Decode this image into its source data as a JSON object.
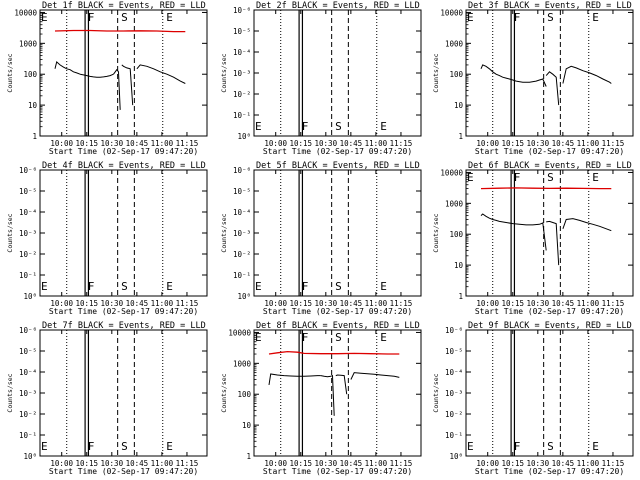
{
  "chart_data": [
    {
      "type": "line",
      "title": "Det 1f BLACK = Events, RED = LLD",
      "xlabel": "Start Time (02-Sep-17 09:47:20)",
      "ylabel": "Counts/sec",
      "y_tick_labels": [
        "1",
        "10",
        "100",
        "1000",
        "10000"
      ],
      "x_tick_labels": [
        "10:00",
        "10:15",
        "10:30",
        "10:45",
        "11:00",
        "11:15"
      ],
      "markers": [
        "E",
        "F",
        "S",
        "E"
      ],
      "xlim": [
        "09:47",
        "11:27"
      ],
      "ylim": [
        1,
        12000
      ],
      "scale_y": "log",
      "events": {
        "segments": [
          {
            "x": [
              0.09,
              0.1,
              0.12,
              0.14,
              0.16,
              0.18,
              0.2,
              0.22,
              0.24
            ],
            "y": [
              150,
              250,
              200,
              170,
              150,
              140,
              120,
              110,
              100
            ]
          },
          {
            "x": [
              0.24,
              0.26,
              0.28,
              0.3,
              0.32,
              0.34,
              0.36,
              0.38,
              0.4,
              0.42,
              0.44
            ],
            "y": [
              100,
              95,
              90,
              85,
              82,
              80,
              80,
              82,
              85,
              90,
              100
            ]
          },
          {
            "x": [
              0.44,
              0.46,
              0.47,
              0.48
            ],
            "y": [
              100,
              140,
              120,
              7
            ]
          },
          {
            "x": [
              0.49,
              0.5,
              0.52,
              0.54,
              0.555
            ],
            "y": [
              200,
              180,
              160,
              150,
              10
            ]
          },
          {
            "x": [
              0.58,
              0.6,
              0.64,
              0.68,
              0.72,
              0.76,
              0.8,
              0.84,
              0.87
            ],
            "y": [
              150,
              200,
              180,
              150,
              120,
              100,
              80,
              60,
              50
            ]
          }
        ]
      },
      "lld": {
        "x": [
          0.09,
          0.2,
          0.3,
          0.4,
          0.5,
          0.6,
          0.7,
          0.8,
          0.87
        ],
        "y": [
          2500,
          2600,
          2600,
          2500,
          2500,
          2550,
          2500,
          2400,
          2400
        ]
      }
    },
    {
      "type": "line",
      "title": "Det 2f BLACK = Events, RED = LLD",
      "xlabel": "Start Time (02-Sep-17 09:47:20)",
      "ylabel": "Counts/sec",
      "y_tick_labels": [
        "10⁰",
        "10⁻¹",
        "10⁻²",
        "10⁻³",
        "10⁻⁴",
        "10⁻⁵",
        "10⁻⁶"
      ],
      "x_tick_labels": [
        "10:00",
        "10:15",
        "10:30",
        "10:45",
        "11:00",
        "11:15"
      ],
      "markers": [
        "E",
        "F",
        "S",
        "E"
      ],
      "xlim": [
        "09:47",
        "11:27"
      ],
      "scale_y": "log",
      "events": null,
      "lld": null
    },
    {
      "type": "line",
      "title": "Det 3f BLACK = Events, RED = LLD",
      "xlabel": "Start Time (02-Sep-17 09:47:20)",
      "ylabel": "Counts/sec",
      "y_tick_labels": [
        "1",
        "10",
        "100",
        "1000",
        "10000"
      ],
      "x_tick_labels": [
        "10:00",
        "10:15",
        "10:30",
        "10:45",
        "11:00",
        "11:15"
      ],
      "markers": [
        "E",
        "F",
        "S",
        "E"
      ],
      "xlim": [
        "09:47",
        "11:27"
      ],
      "ylim": [
        1,
        12000
      ],
      "scale_y": "log",
      "events": {
        "segments": [
          {
            "x": [
              0.09,
              0.1,
              0.12,
              0.14,
              0.16,
              0.18,
              0.2,
              0.22,
              0.24,
              0.26,
              0.28,
              0.3
            ],
            "y": [
              150,
              200,
              180,
              150,
              120,
              100,
              90,
              80,
              75,
              70,
              65,
              60
            ]
          },
          {
            "x": [
              0.3,
              0.34,
              0.38,
              0.42,
              0.44,
              0.46,
              0.48
            ],
            "y": [
              60,
              55,
              55,
              60,
              65,
              70,
              40
            ]
          },
          {
            "x": [
              0.48,
              0.5,
              0.52,
              0.54,
              0.555
            ],
            "y": [
              90,
              120,
              100,
              80,
              10
            ]
          },
          {
            "x": [
              0.58,
              0.6,
              0.63,
              0.66,
              0.7,
              0.74,
              0.78,
              0.82,
              0.86,
              0.87
            ],
            "y": [
              50,
              150,
              180,
              160,
              130,
              110,
              90,
              70,
              55,
              50
            ]
          }
        ]
      },
      "lld": null
    },
    {
      "type": "line",
      "title": "Det 4f BLACK = Events, RED = LLD",
      "xlabel": "Start Time (02-Sep-17 09:47:20)",
      "ylabel": "Counts/sec",
      "y_tick_labels": [
        "10⁰",
        "10⁻¹",
        "10⁻²",
        "10⁻³",
        "10⁻⁴",
        "10⁻⁵",
        "10⁻⁶"
      ],
      "x_tick_labels": [
        "10:00",
        "10:15",
        "10:30",
        "10:45",
        "11:00",
        "11:15"
      ],
      "markers": [
        "E",
        "F",
        "S",
        "E"
      ],
      "xlim": [
        "09:47",
        "11:27"
      ],
      "scale_y": "log",
      "events": null,
      "lld": null
    },
    {
      "type": "line",
      "title": "Det 5f BLACK = Events, RED = LLD",
      "xlabel": "Start Time (02-Sep-17 09:47:20)",
      "ylabel": "Counts/sec",
      "y_tick_labels": [
        "10⁰",
        "10⁻¹",
        "10⁻²",
        "10⁻³",
        "10⁻⁴",
        "10⁻⁵",
        "10⁻⁶"
      ],
      "x_tick_labels": [
        "10:00",
        "10:15",
        "10:30",
        "10:45",
        "11:00",
        "11:15"
      ],
      "markers": [
        "E",
        "F",
        "S",
        "E"
      ],
      "xlim": [
        "09:47",
        "11:27"
      ],
      "scale_y": "log",
      "events": null,
      "lld": null
    },
    {
      "type": "line",
      "title": "Det 6f BLACK = Events, RED = LLD",
      "xlabel": "Start Time (02-Sep-17 09:47:20)",
      "ylabel": "Counts/sec",
      "y_tick_labels": [
        "1",
        "10",
        "100",
        "1000",
        "10000"
      ],
      "x_tick_labels": [
        "10:00",
        "10:15",
        "10:30",
        "10:45",
        "11:00",
        "11:15"
      ],
      "markers": [
        "E",
        "F",
        "S",
        "E"
      ],
      "xlim": [
        "09:47",
        "11:27"
      ],
      "ylim": [
        1,
        12000
      ],
      "scale_y": "log",
      "events": {
        "segments": [
          {
            "x": [
              0.09,
              0.1,
              0.12,
              0.14,
              0.16,
              0.18,
              0.2,
              0.24,
              0.28,
              0.32,
              0.36,
              0.4,
              0.44
            ],
            "y": [
              400,
              450,
              380,
              330,
              300,
              280,
              260,
              240,
              220,
              210,
              200,
              200,
              210
            ]
          },
          {
            "x": [
              0.44,
              0.46,
              0.48
            ],
            "y": [
              210,
              230,
              30
            ]
          },
          {
            "x": [
              0.48,
              0.5,
              0.52,
              0.54,
              0.555
            ],
            "y": [
              250,
              260,
              240,
              220,
              10
            ]
          },
          {
            "x": [
              0.58,
              0.6,
              0.64,
              0.68,
              0.72,
              0.76,
              0.8,
              0.84,
              0.87
            ],
            "y": [
              150,
              300,
              320,
              280,
              240,
              210,
              180,
              150,
              130
            ]
          }
        ]
      },
      "lld": {
        "x": [
          0.09,
          0.2,
          0.3,
          0.4,
          0.5,
          0.6,
          0.7,
          0.8,
          0.87
        ],
        "y": [
          3000,
          3100,
          3150,
          3100,
          3050,
          3100,
          3050,
          3000,
          3000
        ]
      }
    },
    {
      "type": "line",
      "title": "Det 7f BLACK = Events, RED = LLD",
      "xlabel": "Start Time (02-Sep-17 09:47:20)",
      "ylabel": "Counts/sec",
      "y_tick_labels": [
        "10⁰",
        "10⁻¹",
        "10⁻²",
        "10⁻³",
        "10⁻⁴",
        "10⁻⁵",
        "10⁻⁶"
      ],
      "x_tick_labels": [
        "10:00",
        "10:15",
        "10:30",
        "10:45",
        "11:00",
        "11:15"
      ],
      "markers": [
        "E",
        "F",
        "S",
        "E"
      ],
      "xlim": [
        "09:47",
        "11:27"
      ],
      "scale_y": "log",
      "events": null,
      "lld": null
    },
    {
      "type": "line",
      "title": "Det 8f BLACK = Events, RED = LLD",
      "xlabel": "Start Time (02-Sep-17 09:47:20)",
      "ylabel": "Counts/sec",
      "y_tick_labels": [
        "1",
        "10",
        "100",
        "1000",
        "10000"
      ],
      "x_tick_labels": [
        "10:00",
        "10:15",
        "10:30",
        "10:45",
        "11:00",
        "11:15"
      ],
      "markers": [
        "E",
        "F",
        "S",
        "E"
      ],
      "xlim": [
        "09:47",
        "11:27"
      ],
      "ylim": [
        1,
        12000
      ],
      "scale_y": "log",
      "events": {
        "segments": [
          {
            "x": [
              0.09,
              0.1,
              0.14,
              0.18,
              0.22,
              0.26,
              0.3,
              0.34,
              0.38,
              0.4
            ],
            "y": [
              200,
              450,
              420,
              400,
              390,
              380,
              380,
              390,
              400,
              400
            ]
          },
          {
            "x": [
              0.4,
              0.42,
              0.44,
              0.46,
              0.47,
              0.48
            ],
            "y": [
              400,
              380,
              370,
              380,
              400,
              20
            ]
          },
          {
            "x": [
              0.49,
              0.5,
              0.52,
              0.54,
              0.555
            ],
            "y": [
              400,
              420,
              410,
              400,
              100
            ]
          },
          {
            "x": [
              0.58,
              0.6,
              0.64,
              0.68,
              0.72,
              0.76,
              0.8,
              0.84,
              0.87
            ],
            "y": [
              300,
              500,
              480,
              460,
              440,
              420,
              400,
              380,
              350
            ]
          }
        ]
      },
      "lld": {
        "x": [
          0.09,
          0.14,
          0.2,
          0.26,
          0.3,
          0.4,
          0.5,
          0.6,
          0.7,
          0.8,
          0.87
        ],
        "y": [
          2000,
          2200,
          2400,
          2300,
          2100,
          2050,
          2050,
          2100,
          2050,
          2000,
          2000
        ]
      }
    },
    {
      "type": "line",
      "title": "Det 9f BLACK = Events, RED = LLD",
      "xlabel": "Start Time (02-Sep-17 09:47:20)",
      "ylabel": "Counts/sec",
      "y_tick_labels": [
        "10⁰",
        "10⁻¹",
        "10⁻²",
        "10⁻³",
        "10⁻⁴",
        "10⁻⁵",
        "10⁻⁶"
      ],
      "x_tick_labels": [
        "10:00",
        "10:15",
        "10:30",
        "10:45",
        "11:00",
        "11:15"
      ],
      "markers": [
        "E",
        "F",
        "S",
        "E"
      ],
      "xlim": [
        "09:47",
        "11:27"
      ],
      "scale_y": "log",
      "events": null,
      "lld": null
    }
  ],
  "colors": {
    "events": "#000000",
    "lld": "#dd0000",
    "axes": "#000000",
    "background": "#ffffff"
  }
}
